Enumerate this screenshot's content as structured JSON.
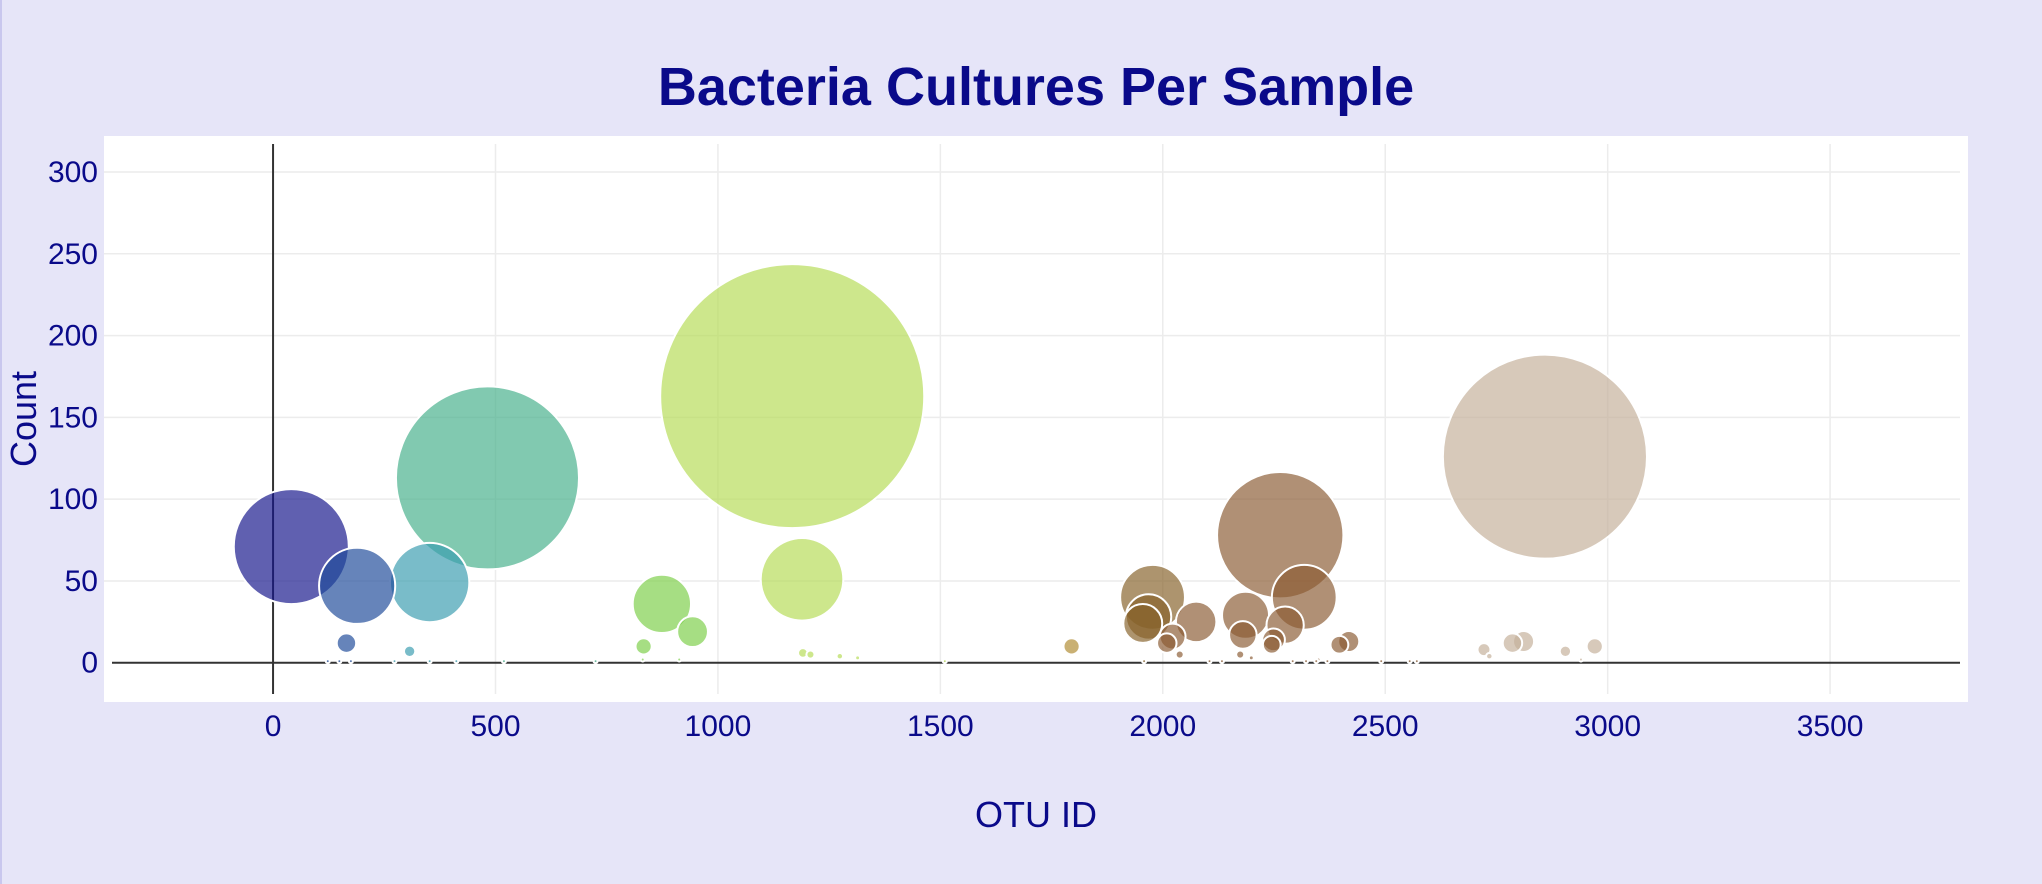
{
  "chart_data": {
    "type": "scatter",
    "variant": "bubble",
    "title": "Bacteria Cultures Per Sample",
    "xlabel": "OTU ID",
    "ylabel": "Count",
    "xlim": [
      -380,
      3810
    ],
    "ylim": [
      -24,
      322
    ],
    "x_ticks": [
      0,
      500,
      1000,
      1500,
      2000,
      2500,
      3000,
      3500
    ],
    "y_ticks": [
      0,
      50,
      100,
      150,
      200,
      250,
      300
    ],
    "grid": true,
    "legend": "none",
    "colorscale": "Earth",
    "points": [
      {
        "x": 41,
        "y": 71,
        "color": "#14148a"
      },
      {
        "x": 482,
        "y": 113,
        "color": "#46b08a"
      },
      {
        "x": 1167,
        "y": 163,
        "color": "#b5dc55"
      },
      {
        "x": 2264,
        "y": 78,
        "color": "#8a5c34"
      },
      {
        "x": 2859,
        "y": 126,
        "color": "#c4b09a"
      },
      {
        "x": 189,
        "y": 47,
        "color": "#1e4a9a"
      },
      {
        "x": 352,
        "y": 49,
        "color": "#3a9cb0"
      },
      {
        "x": 1189,
        "y": 51,
        "color": "#b5dc55"
      },
      {
        "x": 874,
        "y": 36,
        "color": "#7ccf48"
      },
      {
        "x": 1977,
        "y": 40,
        "color": "#86622a"
      },
      {
        "x": 2318,
        "y": 40,
        "color": "#8a5c34"
      },
      {
        "x": 1968,
        "y": 28,
        "color": "#86622a"
      },
      {
        "x": 1955,
        "y": 24,
        "color": "#86622a"
      },
      {
        "x": 2186,
        "y": 29,
        "color": "#8a5c34"
      },
      {
        "x": 2075,
        "y": 25,
        "color": "#8a5c34"
      },
      {
        "x": 2275,
        "y": 23,
        "color": "#8a5c34"
      },
      {
        "x": 2180,
        "y": 17,
        "color": "#8a5c34"
      },
      {
        "x": 943,
        "y": 19,
        "color": "#7ccf48"
      },
      {
        "x": 2022,
        "y": 16,
        "color": "#8a5c34"
      },
      {
        "x": 2249,
        "y": 14,
        "color": "#8a5c34"
      },
      {
        "x": 2418,
        "y": 13,
        "color": "#8a5c34"
      },
      {
        "x": 2397,
        "y": 11,
        "color": "#8a5c34"
      },
      {
        "x": 2009,
        "y": 12,
        "color": "#8a5c34"
      },
      {
        "x": 2245,
        "y": 11,
        "color": "#8a5c34"
      },
      {
        "x": 2811,
        "y": 13,
        "color": "#c4b09a"
      },
      {
        "x": 2786,
        "y": 12,
        "color": "#c4b09a"
      },
      {
        "x": 2971,
        "y": 10,
        "color": "#c4b09a"
      },
      {
        "x": 2722,
        "y": 8,
        "color": "#c4b09a"
      },
      {
        "x": 2905,
        "y": 7,
        "color": "#c4b09a"
      },
      {
        "x": 165,
        "y": 12,
        "color": "#1e4a9a"
      },
      {
        "x": 1795,
        "y": 10,
        "color": "#b08a30"
      },
      {
        "x": 833,
        "y": 10,
        "color": "#7ccf48"
      },
      {
        "x": 307,
        "y": 7,
        "color": "#3a9cb0"
      },
      {
        "x": 1191,
        "y": 6,
        "color": "#b5dc55"
      },
      {
        "x": 1208,
        "y": 5,
        "color": "#b5dc55"
      },
      {
        "x": 2038,
        "y": 5,
        "color": "#8a5c34"
      },
      {
        "x": 2174,
        "y": 5,
        "color": "#8a5c34"
      },
      {
        "x": 2734,
        "y": 4,
        "color": "#c4b09a"
      },
      {
        "x": 1274,
        "y": 4,
        "color": "#b5dc55"
      },
      {
        "x": 2199,
        "y": 3,
        "color": "#8a5c34"
      },
      {
        "x": 1314,
        "y": 3,
        "color": "#b5dc55"
      },
      {
        "x": 913,
        "y": 2,
        "color": "#7ccf48"
      },
      {
        "x": 2350,
        "y": 2,
        "color": "#8a5c34"
      },
      {
        "x": 831,
        "y": 2,
        "color": "#7ccf48"
      },
      {
        "x": 2940,
        "y": 2,
        "color": "#c4b09a"
      },
      {
        "x": 123,
        "y": 1,
        "color": "#1e4a9a"
      },
      {
        "x": 149,
        "y": 1,
        "color": "#1e4a9a"
      },
      {
        "x": 175,
        "y": 1,
        "color": "#1e4a9a"
      },
      {
        "x": 273,
        "y": 1,
        "color": "#3a9cb0"
      },
      {
        "x": 352,
        "y": 1,
        "color": "#3a9cb0"
      },
      {
        "x": 412,
        "y": 1,
        "color": "#3a9cb0"
      },
      {
        "x": 519,
        "y": 1,
        "color": "#46b08a"
      },
      {
        "x": 725,
        "y": 1,
        "color": "#46b08a"
      },
      {
        "x": 1510,
        "y": 1,
        "color": "#b5dc55"
      },
      {
        "x": 1958,
        "y": 1,
        "color": "#86622a"
      },
      {
        "x": 2105,
        "y": 1,
        "color": "#8a5c34"
      },
      {
        "x": 2133,
        "y": 1,
        "color": "#8a5c34"
      },
      {
        "x": 2292,
        "y": 1,
        "color": "#8a5c34"
      },
      {
        "x": 2322,
        "y": 1,
        "color": "#8a5c34"
      },
      {
        "x": 2345,
        "y": 1,
        "color": "#8a5c34"
      },
      {
        "x": 2370,
        "y": 1,
        "color": "#8a5c34"
      },
      {
        "x": 2491,
        "y": 1,
        "color": "#8a5c34"
      },
      {
        "x": 2571,
        "y": 1,
        "color": "#8a5c34"
      },
      {
        "x": 2555,
        "y": 1,
        "color": "#8a5c34"
      }
    ]
  }
}
